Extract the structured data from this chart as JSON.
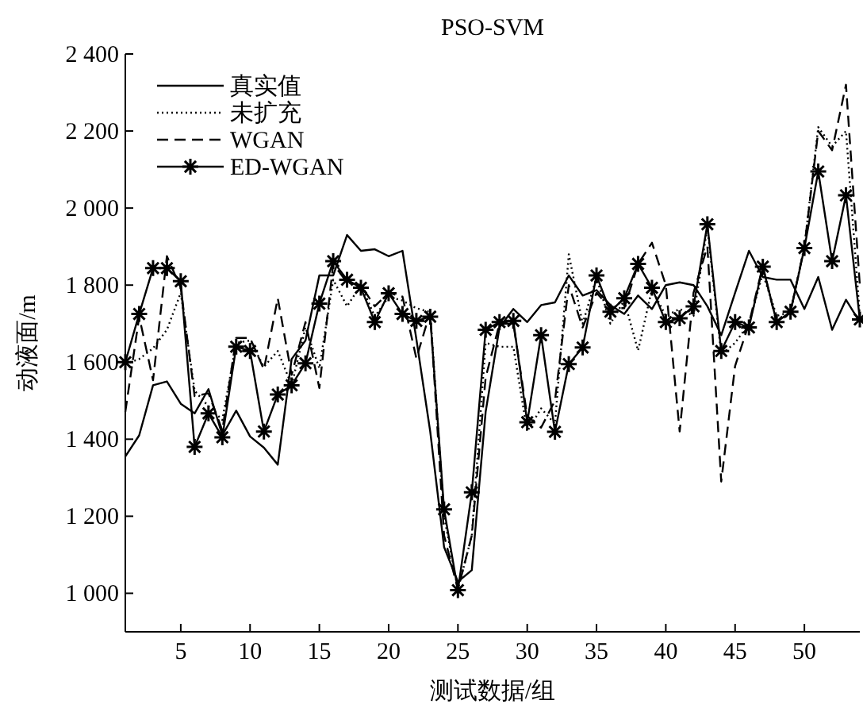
{
  "chart_data": {
    "type": "line",
    "title": "PSO-SVM",
    "xlabel": "测试数据/组",
    "ylabel": "动液面/m",
    "x": [
      1,
      2,
      3,
      4,
      5,
      6,
      7,
      8,
      9,
      10,
      11,
      12,
      13,
      14,
      15,
      16,
      17,
      18,
      19,
      20,
      21,
      22,
      23,
      24,
      25,
      26,
      27,
      28,
      29,
      30,
      31,
      32,
      33,
      34,
      35,
      36,
      37,
      38,
      39,
      40,
      41,
      42,
      43,
      44,
      45,
      46,
      47,
      48,
      49,
      50,
      51,
      52,
      53,
      54
    ],
    "series": [
      {
        "name": "真实值",
        "color": "#000000",
        "line_style": "solid",
        "marker": "none",
        "values": [
          1355,
          1410,
          1540,
          1550,
          1492,
          1467,
          1530,
          1410,
          1474,
          1407,
          1378,
          1334,
          1608,
          1656,
          1825,
          1825,
          1930,
          1889,
          1893,
          1875,
          1889,
          1660,
          1420,
          1120,
          1030,
          1060,
          1471,
          1690,
          1738,
          1704,
          1748,
          1755,
          1825,
          1773,
          1787,
          1748,
          1725,
          1773,
          1738,
          1800,
          1807,
          1800,
          1745,
          1670,
          1780,
          1889,
          1821,
          1814,
          1814,
          1738,
          1821,
          1684,
          1762,
          1704
        ]
      },
      {
        "name": "未扩充",
        "color": "#000000",
        "line_style": "dotted",
        "marker": "none",
        "values": [
          1595,
          1608,
          1636,
          1684,
          1780,
          1526,
          1485,
          1450,
          1650,
          1656,
          1588,
          1629,
          1540,
          1690,
          1584,
          1814,
          1745,
          1800,
          1718,
          1770,
          1760,
          1740,
          1730,
          1200,
          1010,
          1150,
          1650,
          1640,
          1640,
          1420,
          1480,
          1440,
          1880,
          1700,
          1820,
          1700,
          1760,
          1630,
          1790,
          1720,
          1738,
          1720,
          1950,
          1620,
          1650,
          1700,
          1830,
          1720,
          1730,
          1900,
          2210,
          2160,
          2200,
          1720
        ]
      },
      {
        "name": "WGAN",
        "color": "#000000",
        "line_style": "dashed",
        "marker": "none",
        "values": [
          1471,
          1718,
          1553,
          1875,
          1793,
          1512,
          1519,
          1423,
          1663,
          1663,
          1581,
          1766,
          1567,
          1704,
          1533,
          1855,
          1807,
          1800,
          1745,
          1780,
          1770,
          1610,
          1730,
          1150,
          1010,
          1150,
          1560,
          1700,
          1700,
          1460,
          1430,
          1500,
          1800,
          1690,
          1780,
          1740,
          1740,
          1855,
          1910,
          1800,
          1420,
          1780,
          1900,
          1290,
          1590,
          1700,
          1850,
          1700,
          1730,
          1900,
          2200,
          2150,
          2320,
          1800
        ]
      },
      {
        "name": "ED-WGAN",
        "color": "#000000",
        "line_style": "solid",
        "marker": "cross",
        "values": [
          1600,
          1725,
          1844,
          1844,
          1810,
          1380,
          1467,
          1405,
          1640,
          1629,
          1420,
          1516,
          1540,
          1597,
          1752,
          1862,
          1814,
          1793,
          1704,
          1779,
          1725,
          1707,
          1718,
          1218,
          1008,
          1262,
          1684,
          1704,
          1707,
          1444,
          1670,
          1419,
          1595,
          1638,
          1825,
          1731,
          1766,
          1855,
          1793,
          1704,
          1714,
          1745,
          1958,
          1629,
          1704,
          1690,
          1848,
          1704,
          1731,
          1896,
          2095,
          1862,
          2033,
          1711
        ]
      }
    ],
    "xlim": [
      1,
      54
    ],
    "ylim": [
      900,
      2400
    ],
    "xticks": [
      5,
      10,
      15,
      20,
      25,
      30,
      35,
      40,
      45,
      50
    ],
    "yticks": [
      {
        "value": 1000,
        "label": "1 000"
      },
      {
        "value": 1200,
        "label": "1 200"
      },
      {
        "value": 1400,
        "label": "1 400"
      },
      {
        "value": 1600,
        "label": "1 600"
      },
      {
        "value": 1800,
        "label": "1 800"
      },
      {
        "value": 2000,
        "label": "2 000"
      },
      {
        "value": 2200,
        "label": "2 200"
      },
      {
        "value": 2400,
        "label": "2 400"
      }
    ],
    "legend": "top left",
    "grid": false
  }
}
